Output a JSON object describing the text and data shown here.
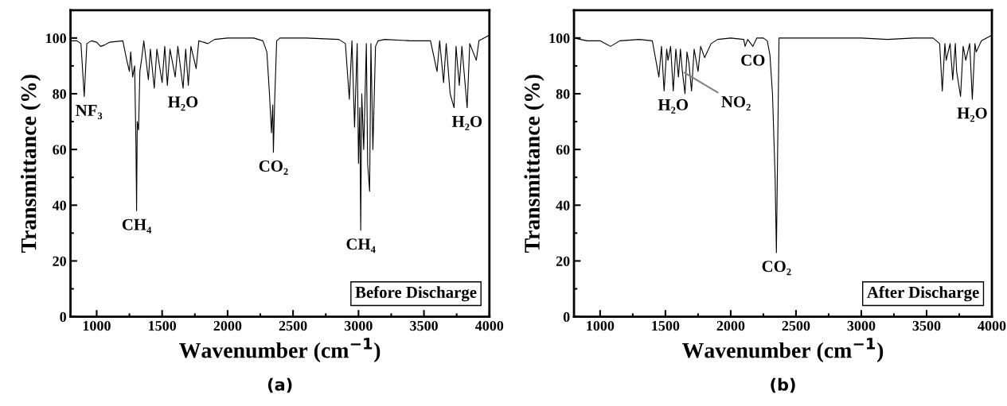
{
  "chart_data": [
    {
      "type": "line",
      "xlabel": "Wavenumber (cm$^{−1}$)",
      "ylabel": "Transmittance (%)",
      "xlim": [
        800,
        4000
      ],
      "ylim": [
        0,
        110
      ],
      "xticks": [
        1000,
        1500,
        2000,
        2500,
        3000,
        3500,
        4000
      ],
      "yticks": [
        0,
        20,
        40,
        60,
        80,
        100
      ],
      "grid": false,
      "legend": false,
      "marker": "none",
      "line_style": "solid",
      "series": [
        {
          "color": "#000000",
          "x": [
            800,
            850,
            880,
            905,
            925,
            960,
            1000,
            1030,
            1060,
            1100,
            1200,
            1230,
            1250,
            1260,
            1275,
            1290,
            1300,
            1305,
            1310,
            1320,
            1330,
            1345,
            1360,
            1395,
            1410,
            1440,
            1460,
            1500,
            1520,
            1540,
            1560,
            1600,
            1620,
            1660,
            1680,
            1700,
            1720,
            1760,
            1780,
            1850,
            1900,
            2000,
            2200,
            2270,
            2300,
            2320,
            2335,
            2345,
            2350,
            2360,
            2375,
            2400,
            2600,
            2850,
            2900,
            2930,
            2950,
            2970,
            2990,
            3000,
            3010,
            3017,
            3025,
            3040,
            3060,
            3070,
            3085,
            3095,
            3110,
            3130,
            3150,
            3200,
            3400,
            3550,
            3600,
            3620,
            3650,
            3670,
            3700,
            3730,
            3745,
            3770,
            3790,
            3810,
            3830,
            3850,
            3900,
            3920,
            3960,
            4000
          ],
          "values": [
            99,
            99,
            98,
            79,
            98,
            99,
            98.5,
            97,
            97.5,
            98.5,
            99,
            92,
            88,
            95,
            86,
            90,
            62,
            38,
            70,
            67,
            88,
            93,
            99,
            85,
            96,
            82,
            96,
            84,
            97,
            83,
            96,
            86,
            97,
            82,
            96,
            83,
            97,
            89,
            99,
            98,
            99.5,
            100,
            100,
            99,
            95,
            80,
            66,
            76,
            59,
            78,
            99,
            100,
            100,
            99.5,
            98,
            78,
            99,
            68,
            98,
            55,
            75,
            31,
            80,
            60,
            98,
            55,
            45,
            98,
            60,
            97,
            99,
            99.5,
            99,
            99,
            88,
            99,
            84,
            98,
            80,
            75,
            97,
            83,
            97,
            86,
            75,
            98,
            92,
            99,
            100,
            101
          ]
        }
      ],
      "annotations": [
        {
          "text": "NF₃",
          "x": 905,
          "y": 79
        },
        {
          "text": "CH₄",
          "x": 1305,
          "y": 38
        },
        {
          "text": "H₂O",
          "x": 1660,
          "y": 82
        },
        {
          "text": "CO₂",
          "x": 2350,
          "y": 59
        },
        {
          "text": "CH₄",
          "x": 3017,
          "y": 31
        },
        {
          "text": "H₂O",
          "x": 3830,
          "y": 75
        },
        "Before Discharge",
        "(a)"
      ]
    },
    {
      "type": "line",
      "xlabel": "Wavenumber (cm$^{−1}$)",
      "ylabel": "Transmittance (%)",
      "xlim": [
        800,
        4000
      ],
      "ylim": [
        0,
        110
      ],
      "xticks": [
        1000,
        1500,
        2000,
        2500,
        3000,
        3500,
        4000
      ],
      "yticks": [
        0,
        20,
        40,
        60,
        80,
        100
      ],
      "grid": false,
      "legend": false,
      "marker": "none",
      "line_style": "solid",
      "series": [
        {
          "color": "#000000",
          "x": [
            800,
            900,
            1000,
            1080,
            1150,
            1300,
            1400,
            1450,
            1470,
            1490,
            1510,
            1520,
            1540,
            1560,
            1580,
            1600,
            1615,
            1630,
            1650,
            1665,
            1680,
            1700,
            1720,
            1750,
            1770,
            1800,
            1850,
            1900,
            2000,
            2100,
            2110,
            2130,
            2170,
            2200,
            2250,
            2280,
            2300,
            2320,
            2340,
            2350,
            2360,
            2370,
            2400,
            2600,
            3000,
            3200,
            3400,
            3550,
            3600,
            3620,
            3640,
            3650,
            3680,
            3700,
            3720,
            3730,
            3760,
            3780,
            3800,
            3830,
            3850,
            3870,
            3880,
            3920,
            3960,
            4000
          ],
          "values": [
            100,
            99,
            99,
            97,
            99,
            99.5,
            99,
            86,
            97,
            81,
            96,
            92,
            97,
            81,
            96,
            86,
            96,
            88,
            80,
            95,
            91,
            81,
            96,
            88,
            97,
            93,
            98,
            99.5,
            100,
            99.5,
            97,
            99.5,
            97,
            100,
            100,
            99,
            94,
            80,
            50,
            23,
            62,
            100,
            100,
            100,
            100,
            99.5,
            100,
            100,
            98,
            81,
            98,
            92,
            98,
            85,
            98,
            88,
            79,
            97,
            92,
            98,
            78,
            98,
            95,
            99,
            100,
            101
          ]
        }
      ],
      "annotations": [
        {
          "text": "H₂O",
          "x": 1560,
          "y": 81
        },
        {
          "text": "NO₂",
          "x": 1630,
          "y": 88
        },
        {
          "text": "CO",
          "x": 2170,
          "y": 97
        },
        {
          "text": "CO₂",
          "x": 2350,
          "y": 23
        },
        {
          "text": "H₂O",
          "x": 3850,
          "y": 78
        },
        "After Discharge",
        "(b)"
      ]
    }
  ]
}
